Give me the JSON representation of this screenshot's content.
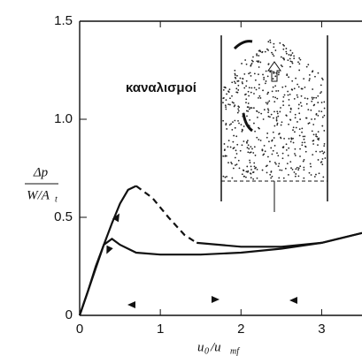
{
  "chart_data": {
    "type": "line",
    "x_label": [
      "u",
      "0",
      "/u",
      "mf"
    ],
    "y_label": {
      "numerator": "Δp",
      "denominator": [
        "W/A",
        "t"
      ]
    },
    "annotation": "καναλισμοί",
    "xlim": [
      0,
      3.5
    ],
    "ylim": [
      0,
      1.5
    ],
    "xticks": [
      0,
      1,
      2,
      3
    ],
    "yticks": [
      0,
      {
        "value": 0.5,
        "label": "0.5"
      },
      {
        "value": 1,
        "label": "1.0"
      },
      {
        "value": 1.5,
        "label": "1.5"
      }
    ],
    "series": [
      {
        "color": "#111111",
        "dashed": false,
        "x": [
          0,
          0.1,
          0.2,
          0.3,
          0.4,
          0.5,
          0.6,
          0.7
        ],
        "values": [
          0,
          0.12,
          0.24,
          0.36,
          0.47,
          0.57,
          0.64,
          0.66
        ]
      },
      {
        "color": "#111111",
        "dashed": true,
        "x": [
          0.7,
          0.9,
          1.1,
          1.3,
          1.45
        ],
        "values": [
          0.66,
          0.6,
          0.5,
          0.41,
          0.37
        ]
      },
      {
        "color": "#111111",
        "dashed": false,
        "x": [
          1.45,
          2,
          2.5,
          3,
          3.5
        ],
        "values": [
          0.37,
          0.35,
          0.35,
          0.37,
          0.42
        ]
      },
      {
        "color": "#111111",
        "dashed": false,
        "x": [
          3.5,
          3,
          2.5,
          2,
          1.5,
          1,
          0.7,
          0.5,
          0.4,
          0.3,
          0.2,
          0.1,
          0
        ],
        "values": [
          0.42,
          0.37,
          0.34,
          0.32,
          0.31,
          0.31,
          0.32,
          0.36,
          0.39,
          0.36,
          0.25,
          0.12,
          0
        ]
      }
    ]
  }
}
